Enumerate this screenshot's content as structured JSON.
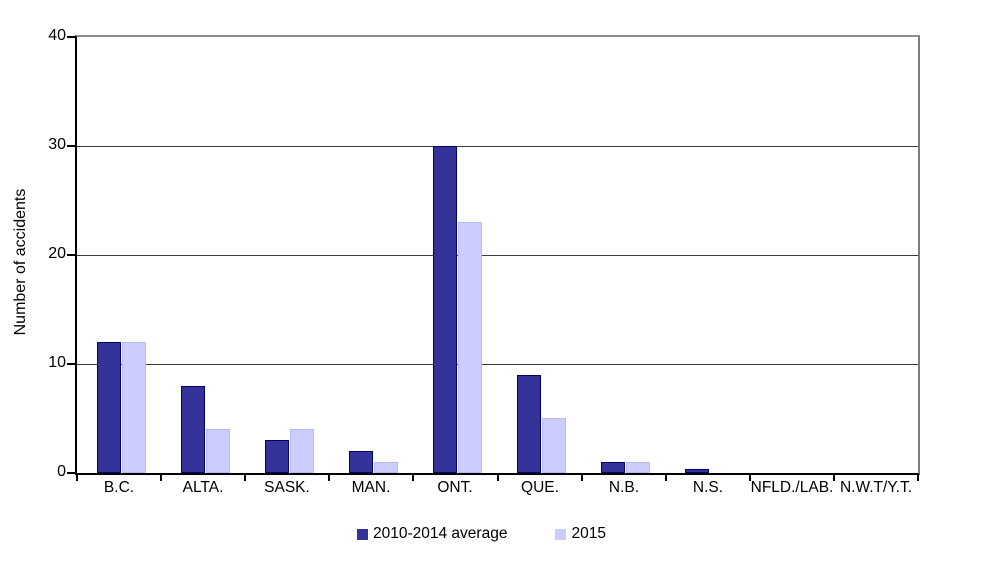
{
  "chart_data": {
    "type": "bar",
    "title": "",
    "xlabel": "",
    "ylabel": "Number of accidents",
    "ylim": [
      0,
      40
    ],
    "ytick_interval": 10,
    "ytick_labels": [
      "0",
      "10",
      "20",
      "30",
      "40"
    ],
    "grid": true,
    "legend_position": "bottom-center",
    "categories": [
      "B.C.",
      "ALTA.",
      "SASK.",
      "MAN.",
      "ONT.",
      "QUE.",
      "N.B.",
      "N.S.",
      "NFLD./LAB.",
      "N.W.T/Y.T."
    ],
    "series": [
      {
        "name": "2010-2014 average",
        "color": "#333399",
        "border_color": "#000066",
        "values": [
          12,
          8,
          3,
          2,
          30,
          9,
          1,
          0.4,
          0,
          0
        ]
      },
      {
        "name": "2015",
        "color": "#ccccff",
        "border_color": "#b9b9ea",
        "values": [
          12,
          4,
          4,
          1,
          23,
          5,
          1,
          0,
          0,
          0
        ]
      }
    ]
  },
  "colors": {
    "axis": "#000000",
    "plot_border_top": "#8e8e8e",
    "plot_border_right": "#7d7d7d",
    "gridline": "#3c3c3c",
    "background": "#ffffff",
    "text": "#000000"
  }
}
